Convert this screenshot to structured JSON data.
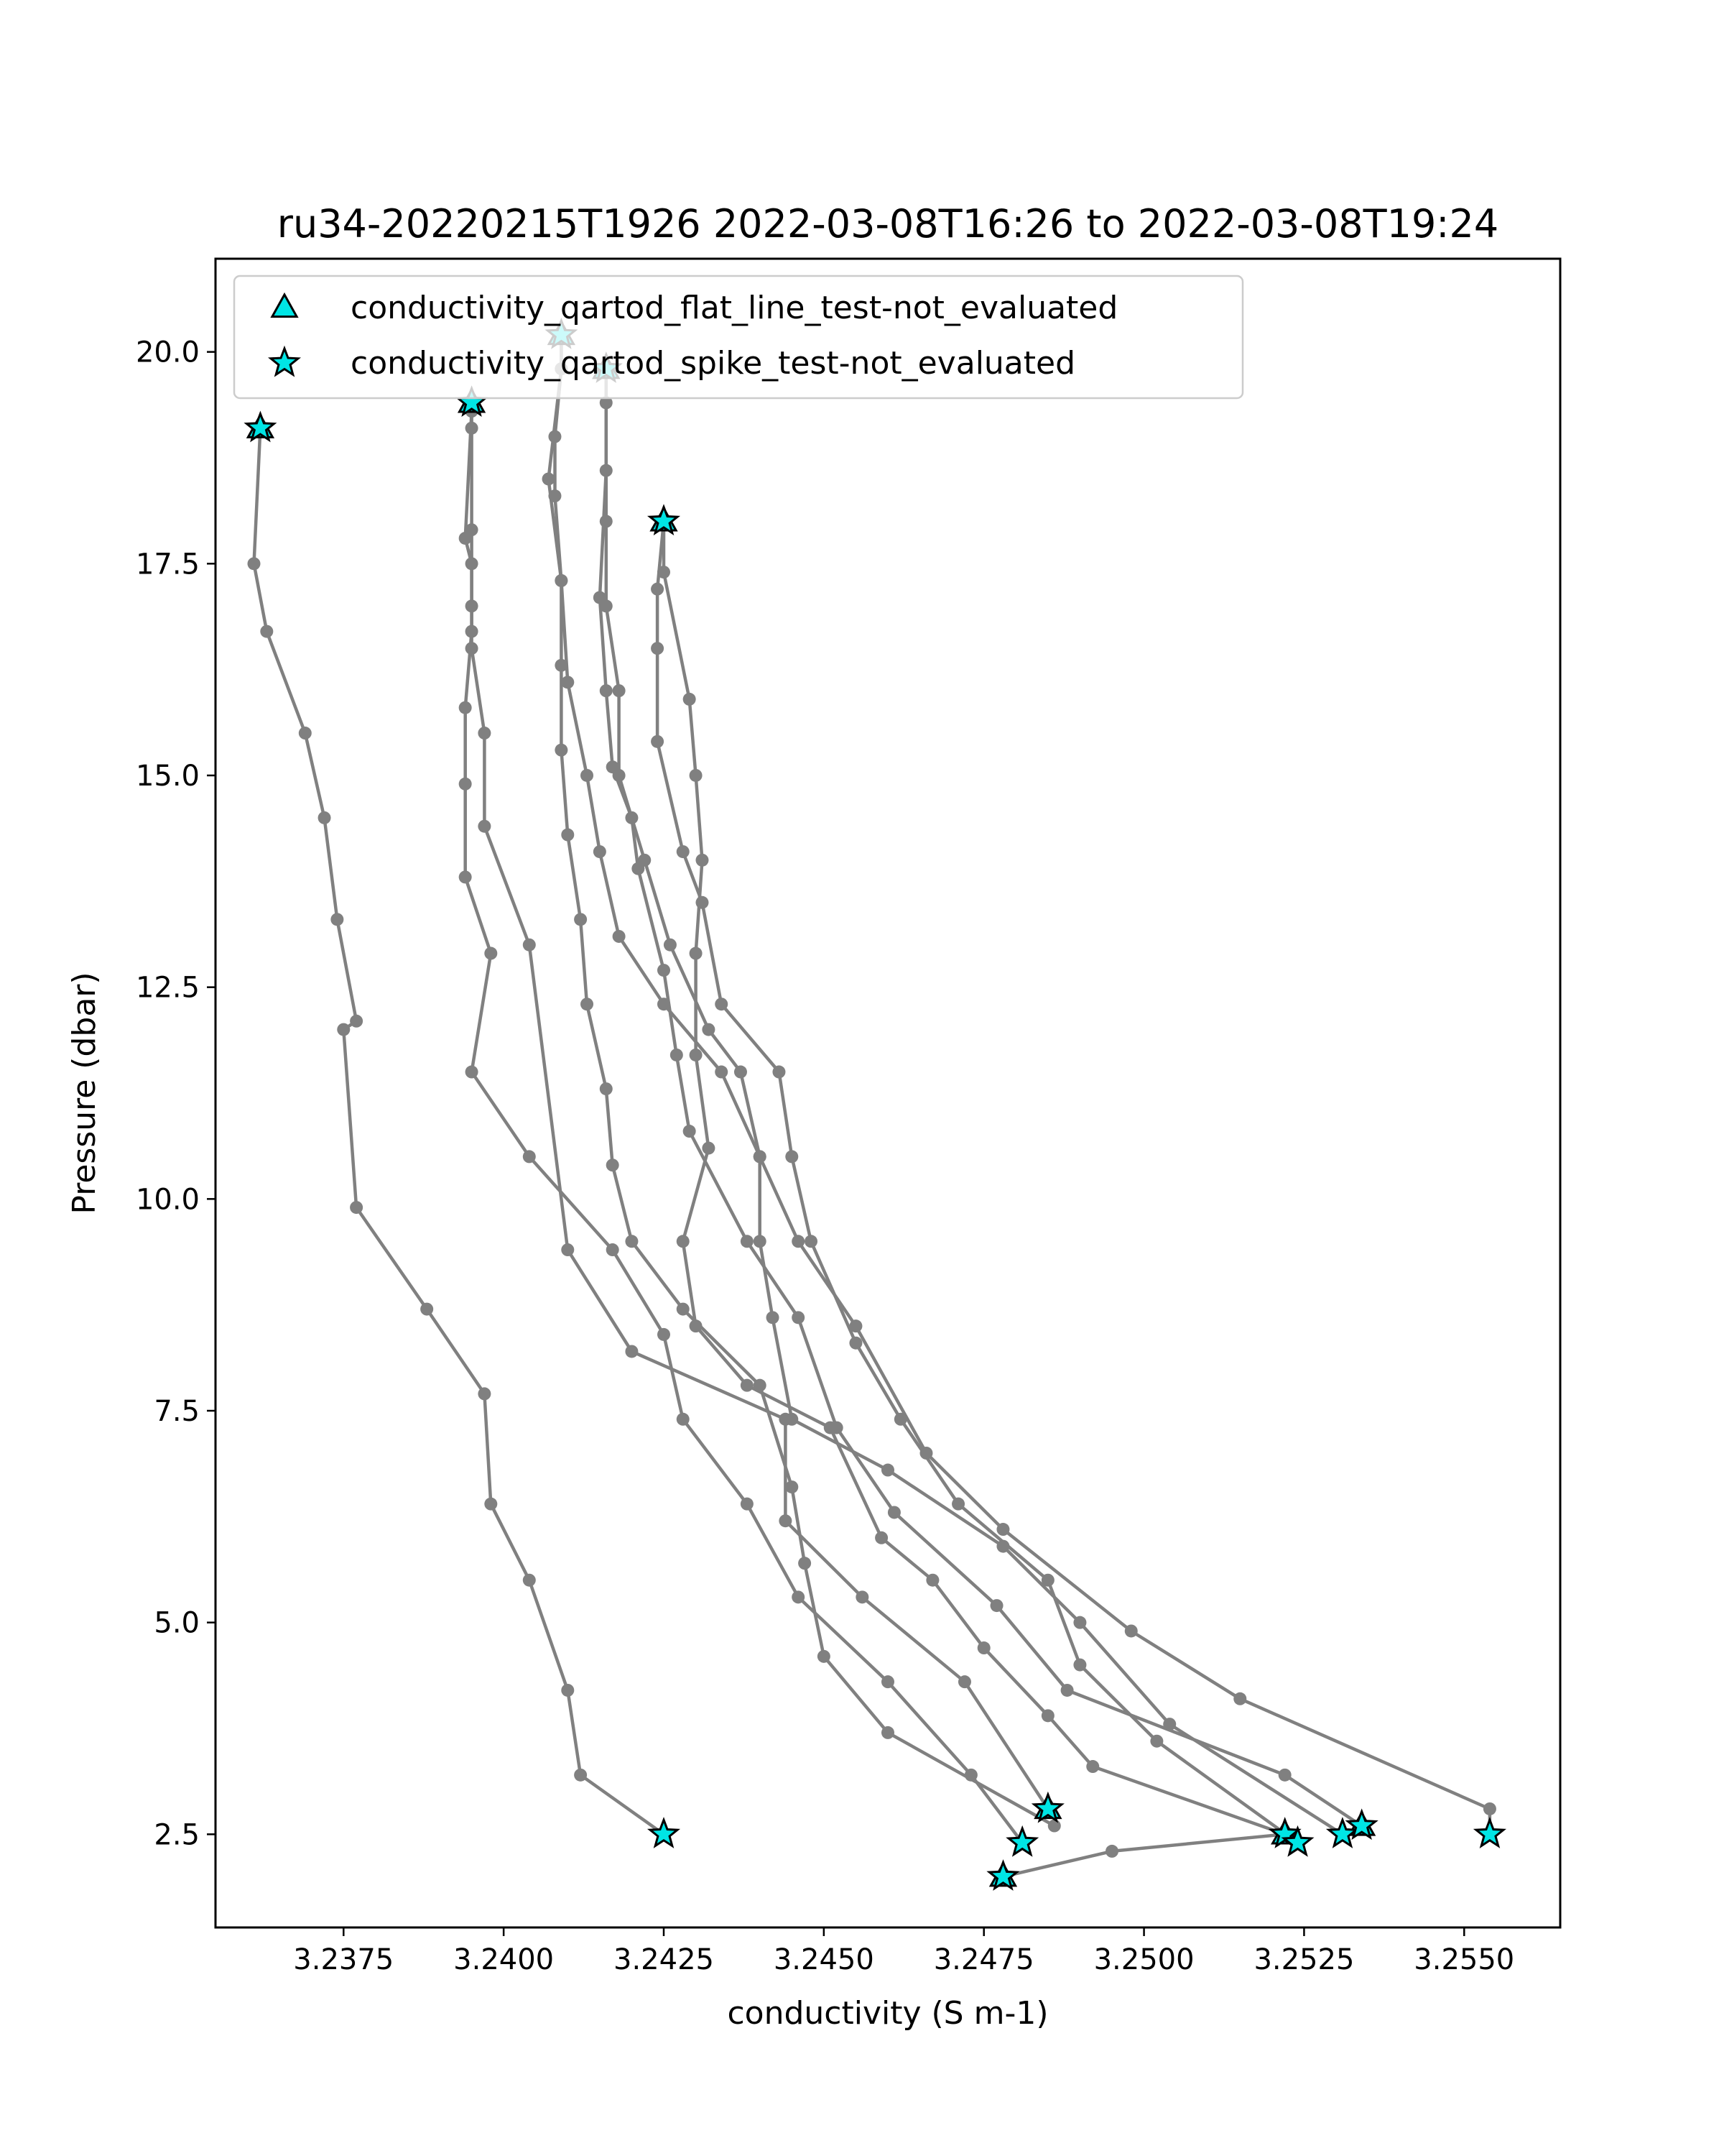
{
  "chart_data": {
    "type": "scatter",
    "title": "ru34-20220215T1926 2022-03-08T16:26 to 2022-03-08T19:24",
    "xlabel": "conductivity (S m-1)",
    "ylabel": "Pressure (dbar)",
    "xlim": [
      3.2355,
      3.2565
    ],
    "ylim": [
      21.1,
      1.4
    ],
    "y_inverted": true,
    "xticks": [
      "3.2375",
      "3.2400",
      "3.2425",
      "3.2450",
      "3.2475",
      "3.2500",
      "3.2525",
      "3.2550"
    ],
    "xtick_values": [
      3.2375,
      3.24,
      3.2425,
      3.245,
      3.2475,
      3.25,
      3.2525,
      3.255
    ],
    "yticks": [
      "2.5",
      "5.0",
      "7.5",
      "10.0",
      "12.5",
      "15.0",
      "17.5",
      "20.0"
    ],
    "ytick_values": [
      2.5,
      5.0,
      7.5,
      10.0,
      12.5,
      15.0,
      17.5,
      20.0
    ],
    "line_color": "#808080",
    "marker_color": "#00e5e5",
    "legend_position": "top-left",
    "legend": [
      {
        "label": "conductivity_qartod_flat_line_test-not_evaluated",
        "marker": "triangle"
      },
      {
        "label": "conductivity_qartod_spike_test-not_evaluated",
        "marker": "star"
      }
    ],
    "profiles": [
      {
        "points": [
          [
            3.2425,
            2.5
          ],
          [
            3.2412,
            3.2
          ],
          [
            3.241,
            4.2
          ],
          [
            3.2404,
            5.5
          ],
          [
            3.2398,
            6.4
          ],
          [
            3.2397,
            7.7
          ],
          [
            3.2388,
            8.7
          ],
          [
            3.2377,
            9.9
          ],
          [
            3.2375,
            12.0
          ],
          [
            3.2377,
            12.1
          ],
          [
            3.2374,
            13.3
          ],
          [
            3.2372,
            14.5
          ],
          [
            3.2369,
            15.5
          ],
          [
            3.2363,
            16.7
          ],
          [
            3.2361,
            17.5
          ],
          [
            3.2362,
            19.1
          ]
        ]
      },
      {
        "points": [
          [
            3.2478,
            2.0
          ],
          [
            3.2495,
            2.3
          ],
          [
            3.2522,
            2.5
          ],
          [
            3.2492,
            3.3
          ],
          [
            3.2485,
            3.9
          ],
          [
            3.2475,
            4.7
          ],
          [
            3.2467,
            5.5
          ],
          [
            3.2459,
            6.0
          ],
          [
            3.2451,
            7.3
          ],
          [
            3.2438,
            7.8
          ],
          [
            3.243,
            8.5
          ],
          [
            3.2428,
            9.5
          ],
          [
            3.2432,
            10.6
          ],
          [
            3.243,
            11.7
          ],
          [
            3.243,
            12.9
          ],
          [
            3.2431,
            14.0
          ],
          [
            3.243,
            15.0
          ],
          [
            3.2429,
            15.9
          ],
          [
            3.2425,
            17.4
          ],
          [
            3.2425,
            18.0
          ]
        ]
      },
      {
        "points": [
          [
            3.2481,
            2.4
          ],
          [
            3.2473,
            3.2
          ],
          [
            3.246,
            4.3
          ],
          [
            3.2446,
            5.3
          ],
          [
            3.2438,
            6.4
          ],
          [
            3.2428,
            7.4
          ],
          [
            3.2425,
            8.4
          ],
          [
            3.2417,
            9.4
          ],
          [
            3.2404,
            10.5
          ],
          [
            3.2395,
            11.5
          ],
          [
            3.2398,
            12.9
          ],
          [
            3.2394,
            13.8
          ],
          [
            3.2394,
            14.9
          ],
          [
            3.2394,
            15.8
          ],
          [
            3.2395,
            16.7
          ],
          [
            3.2395,
            17.0
          ],
          [
            3.2395,
            17.9
          ],
          [
            3.2395,
            19.1
          ],
          [
            3.2395,
            19.4
          ]
        ]
      },
      {
        "points": [
          [
            3.2485,
            2.8
          ],
          [
            3.2472,
            4.3
          ],
          [
            3.2456,
            5.3
          ],
          [
            3.2444,
            6.2
          ],
          [
            3.2444,
            7.4
          ],
          [
            3.242,
            8.2
          ],
          [
            3.241,
            9.4
          ],
          [
            3.2404,
            13.0
          ],
          [
            3.2397,
            14.4
          ],
          [
            3.2397,
            15.5
          ],
          [
            3.2395,
            16.5
          ],
          [
            3.2395,
            17.5
          ],
          [
            3.2394,
            17.8
          ],
          [
            3.2395,
            19.3
          ]
        ]
      },
      {
        "points": [
          [
            3.2524,
            2.4
          ],
          [
            3.2502,
            3.6
          ],
          [
            3.249,
            4.5
          ],
          [
            3.2485,
            5.5
          ],
          [
            3.2471,
            6.4
          ],
          [
            3.2462,
            7.4
          ],
          [
            3.2455,
            8.3
          ],
          [
            3.2448,
            9.5
          ],
          [
            3.2445,
            10.5
          ],
          [
            3.2443,
            11.5
          ],
          [
            3.2434,
            12.3
          ],
          [
            3.2431,
            13.5
          ],
          [
            3.2428,
            14.1
          ],
          [
            3.2424,
            15.4
          ],
          [
            3.2424,
            16.5
          ],
          [
            3.2424,
            17.2
          ],
          [
            3.2425,
            18.0
          ]
        ]
      },
      {
        "points": [
          [
            3.2531,
            2.5
          ],
          [
            3.2504,
            3.8
          ],
          [
            3.249,
            5.0
          ],
          [
            3.2478,
            5.9
          ],
          [
            3.246,
            6.8
          ],
          [
            3.2445,
            7.4
          ],
          [
            3.2442,
            8.6
          ],
          [
            3.244,
            9.5
          ],
          [
            3.244,
            10.5
          ],
          [
            3.2437,
            11.5
          ],
          [
            3.2432,
            12.0
          ],
          [
            3.2426,
            13.0
          ],
          [
            3.2422,
            14.0
          ],
          [
            3.2418,
            15.0
          ],
          [
            3.2418,
            16.0
          ],
          [
            3.2416,
            17.0
          ],
          [
            3.2416,
            18.0
          ],
          [
            3.2416,
            19.4
          ],
          [
            3.2416,
            19.8
          ]
        ]
      },
      {
        "points": [
          [
            3.2534,
            2.6
          ],
          [
            3.2522,
            3.2
          ],
          [
            3.2488,
            4.2
          ],
          [
            3.2477,
            5.2
          ],
          [
            3.2461,
            6.3
          ],
          [
            3.2452,
            7.3
          ],
          [
            3.2446,
            8.6
          ],
          [
            3.2438,
            9.5
          ],
          [
            3.2429,
            10.8
          ],
          [
            3.2427,
            11.7
          ],
          [
            3.2425,
            12.7
          ],
          [
            3.2421,
            13.9
          ],
          [
            3.242,
            14.5
          ],
          [
            3.2417,
            15.1
          ],
          [
            3.2416,
            16.0
          ],
          [
            3.2415,
            17.1
          ],
          [
            3.2416,
            18.6
          ],
          [
            3.2416,
            19.8
          ]
        ]
      },
      {
        "points": [
          [
            3.2554,
            2.5
          ],
          [
            3.2554,
            2.8
          ],
          [
            3.2515,
            4.1
          ],
          [
            3.2498,
            4.9
          ],
          [
            3.2478,
            6.1
          ],
          [
            3.2466,
            7.0
          ],
          [
            3.2455,
            8.5
          ],
          [
            3.2446,
            9.5
          ],
          [
            3.244,
            10.5
          ],
          [
            3.2434,
            11.5
          ],
          [
            3.2425,
            12.3
          ],
          [
            3.2418,
            13.1
          ],
          [
            3.2415,
            14.1
          ],
          [
            3.2413,
            15.0
          ],
          [
            3.241,
            16.1
          ],
          [
            3.2409,
            17.3
          ],
          [
            3.2408,
            18.3
          ],
          [
            3.2408,
            19.0
          ],
          [
            3.2409,
            19.8
          ],
          [
            3.2409,
            20.2
          ]
        ]
      },
      {
        "points": [
          [
            3.2486,
            2.6
          ],
          [
            3.246,
            3.7
          ],
          [
            3.245,
            4.6
          ],
          [
            3.2447,
            5.7
          ],
          [
            3.2445,
            6.6
          ],
          [
            3.244,
            7.8
          ],
          [
            3.2428,
            8.7
          ],
          [
            3.242,
            9.5
          ],
          [
            3.2417,
            10.4
          ],
          [
            3.2416,
            11.3
          ],
          [
            3.2413,
            12.3
          ],
          [
            3.2412,
            13.3
          ],
          [
            3.241,
            14.3
          ],
          [
            3.2409,
            15.3
          ],
          [
            3.2409,
            16.3
          ],
          [
            3.2409,
            17.3
          ],
          [
            3.2407,
            18.5
          ],
          [
            3.2409,
            19.8
          ],
          [
            3.2409,
            20.2
          ]
        ]
      }
    ],
    "spike_flags": [
      [
        3.2425,
        2.5
      ],
      [
        3.2478,
        2.0
      ],
      [
        3.2481,
        2.4
      ],
      [
        3.2485,
        2.8
      ],
      [
        3.2522,
        2.5
      ],
      [
        3.2524,
        2.4
      ],
      [
        3.2531,
        2.5
      ],
      [
        3.2534,
        2.6
      ],
      [
        3.2554,
        2.5
      ],
      [
        3.2362,
        19.1
      ],
      [
        3.2395,
        19.4
      ],
      [
        3.2409,
        20.2
      ],
      [
        3.2416,
        19.8
      ],
      [
        3.2425,
        18.0
      ]
    ],
    "flat_line_flags": [
      [
        3.2478,
        2.0
      ],
      [
        3.2485,
        2.8
      ],
      [
        3.2522,
        2.5
      ],
      [
        3.2534,
        2.6
      ],
      [
        3.2362,
        19.1
      ],
      [
        3.2395,
        19.4
      ],
      [
        3.2409,
        20.2
      ],
      [
        3.2416,
        19.8
      ],
      [
        3.2425,
        18.0
      ]
    ]
  }
}
